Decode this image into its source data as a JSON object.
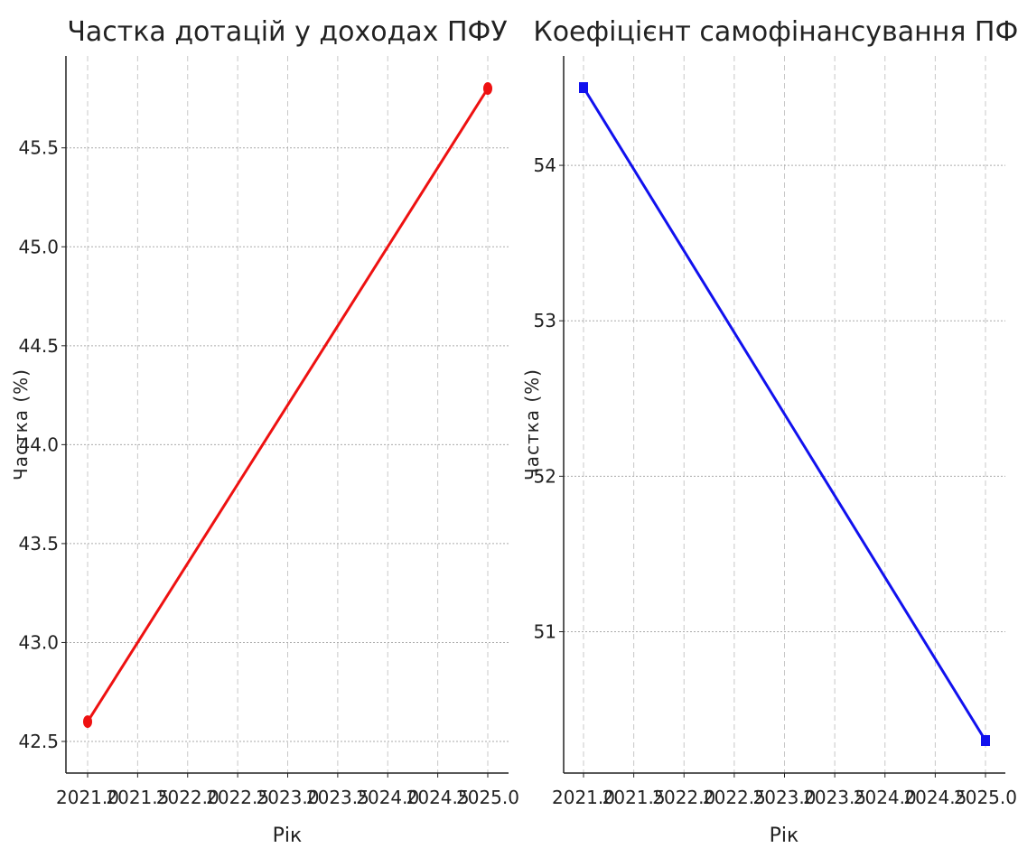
{
  "chart_data": [
    {
      "type": "line",
      "title": "Частка дотацій у доходах ПФУ",
      "xlabel": "Рік",
      "ylabel": "Частка (%)",
      "x": [
        2021,
        2025
      ],
      "series": [
        {
          "values": [
            42.6,
            45.8
          ],
          "color": "#ee1111",
          "marker": "circle"
        }
      ],
      "xlim": [
        2021,
        2025
      ],
      "ylim": [
        42.5,
        45.8
      ],
      "xticks": [
        "2021.0",
        "2021.5",
        "2022.0",
        "2022.5",
        "2023.0",
        "2023.5",
        "2024.0",
        "2024.5",
        "2025.0"
      ],
      "yticks": [
        "42.5",
        "43.0",
        "43.5",
        "44.0",
        "44.5",
        "45.0",
        "45.5"
      ],
      "grid": true
    },
    {
      "type": "line",
      "title": "Коефіцієнт самофінансування ПФУ",
      "xlabel": "Рік",
      "ylabel": "Частка (%)",
      "x": [
        2021,
        2025
      ],
      "series": [
        {
          "values": [
            54.5,
            50.3
          ],
          "color": "#1111ee",
          "marker": "square"
        }
      ],
      "xlim": [
        2021,
        2025
      ],
      "ylim": [
        50.3,
        54.5
      ],
      "xticks": [
        "2021.0",
        "2021.5",
        "2022.0",
        "2022.5",
        "2023.0",
        "2023.5",
        "2024.0",
        "2024.5",
        "2025.0"
      ],
      "yticks": [
        "51",
        "52",
        "53",
        "54"
      ],
      "grid": true
    }
  ]
}
